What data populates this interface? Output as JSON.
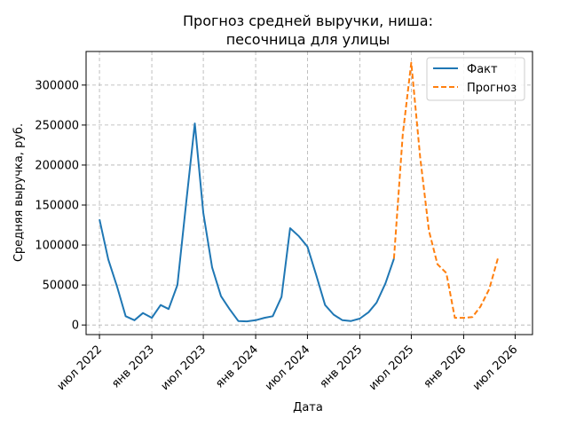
{
  "chart_data": {
    "type": "line",
    "title_lines": [
      "Прогноз средней выручки, ниша:",
      "песочница для улицы"
    ],
    "xlabel": "Дата",
    "ylabel": "Средняя выручка, руб.",
    "xlim": [
      "2022-05-15",
      "2026-08-31"
    ],
    "ylim": [
      -12000,
      342000
    ],
    "x_ticks": [
      {
        "date": "2022-07-01",
        "label": "июл 2022"
      },
      {
        "date": "2023-01-01",
        "label": "янв 2023"
      },
      {
        "date": "2023-07-01",
        "label": "июл 2023"
      },
      {
        "date": "2024-01-01",
        "label": "янв 2024"
      },
      {
        "date": "2024-07-01",
        "label": "июл 2024"
      },
      {
        "date": "2025-01-01",
        "label": "янв 2025"
      },
      {
        "date": "2025-07-01",
        "label": "июл 2025"
      },
      {
        "date": "2026-01-01",
        "label": "янв 2026"
      },
      {
        "date": "2026-07-01",
        "label": "июл 2026"
      }
    ],
    "y_ticks": [
      {
        "value": 0,
        "label": "0"
      },
      {
        "value": 50000,
        "label": "50000"
      },
      {
        "value": 100000,
        "label": "100000"
      },
      {
        "value": 150000,
        "label": "150000"
      },
      {
        "value": 200000,
        "label": "200000"
      },
      {
        "value": 250000,
        "label": "250000"
      },
      {
        "value": 300000,
        "label": "300000"
      }
    ],
    "grid": true,
    "legend_position": "top-right",
    "series": [
      {
        "name": "Факт",
        "color": "#1f77b4",
        "dash": "solid",
        "points": [
          {
            "x": "2022-07-01",
            "y": 132000
          },
          {
            "x": "2022-08-01",
            "y": 82000
          },
          {
            "x": "2022-09-01",
            "y": 48000
          },
          {
            "x": "2022-10-01",
            "y": 11000
          },
          {
            "x": "2022-11-01",
            "y": 6000
          },
          {
            "x": "2022-12-01",
            "y": 15000
          },
          {
            "x": "2023-01-01",
            "y": 9000
          },
          {
            "x": "2023-02-01",
            "y": 25000
          },
          {
            "x": "2023-03-01",
            "y": 20000
          },
          {
            "x": "2023-04-01",
            "y": 50000
          },
          {
            "x": "2023-05-01",
            "y": 150000
          },
          {
            "x": "2023-06-01",
            "y": 252000
          },
          {
            "x": "2023-07-01",
            "y": 140000
          },
          {
            "x": "2023-08-01",
            "y": 72000
          },
          {
            "x": "2023-09-01",
            "y": 36000
          },
          {
            "x": "2023-10-01",
            "y": 20000
          },
          {
            "x": "2023-11-01",
            "y": 5000
          },
          {
            "x": "2023-12-01",
            "y": 4500
          },
          {
            "x": "2024-01-01",
            "y": 6000
          },
          {
            "x": "2024-02-01",
            "y": 9000
          },
          {
            "x": "2024-03-01",
            "y": 11000
          },
          {
            "x": "2024-04-01",
            "y": 35000
          },
          {
            "x": "2024-05-01",
            "y": 121000
          },
          {
            "x": "2024-06-01",
            "y": 111000
          },
          {
            "x": "2024-07-01",
            "y": 98000
          },
          {
            "x": "2024-08-01",
            "y": 62000
          },
          {
            "x": "2024-09-01",
            "y": 25000
          },
          {
            "x": "2024-10-01",
            "y": 13000
          },
          {
            "x": "2024-11-01",
            "y": 6000
          },
          {
            "x": "2024-12-01",
            "y": 5000
          },
          {
            "x": "2025-01-01",
            "y": 8000
          },
          {
            "x": "2025-02-01",
            "y": 16000
          },
          {
            "x": "2025-03-01",
            "y": 28000
          },
          {
            "x": "2025-04-01",
            "y": 52000
          },
          {
            "x": "2025-05-01",
            "y": 83000
          }
        ]
      },
      {
        "name": "Прогноз",
        "color": "#ff7f0e",
        "dash": "dashed",
        "points": [
          {
            "x": "2025-05-01",
            "y": 83000
          },
          {
            "x": "2025-06-01",
            "y": 238000
          },
          {
            "x": "2025-07-01",
            "y": 328000
          },
          {
            "x": "2025-08-01",
            "y": 210000
          },
          {
            "x": "2025-09-01",
            "y": 118000
          },
          {
            "x": "2025-10-01",
            "y": 76000
          },
          {
            "x": "2025-11-01",
            "y": 65000
          },
          {
            "x": "2025-12-01",
            "y": 9000
          },
          {
            "x": "2026-01-01",
            "y": 9000
          },
          {
            "x": "2026-02-01",
            "y": 10000
          },
          {
            "x": "2026-03-01",
            "y": 23000
          },
          {
            "x": "2026-04-01",
            "y": 45000
          },
          {
            "x": "2026-05-01",
            "y": 83000
          }
        ]
      }
    ]
  }
}
